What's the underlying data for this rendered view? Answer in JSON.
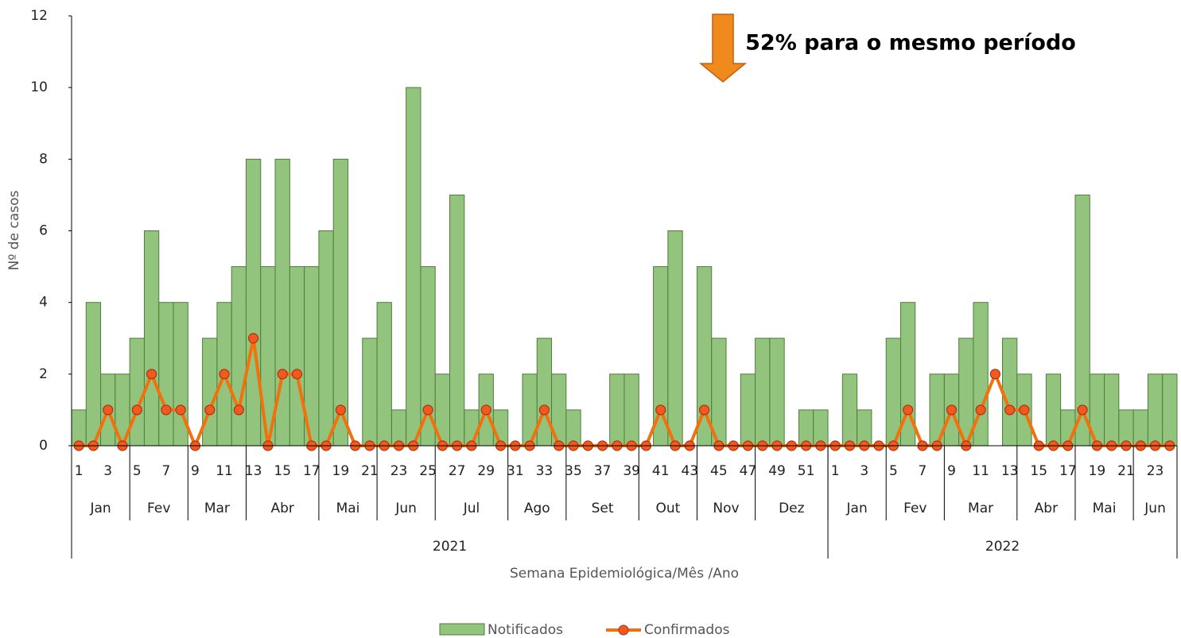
{
  "chart_data": {
    "type": "bar-line",
    "annotation": "52% para o mesmo período",
    "ylabel": "Nº de casos",
    "xlabel": "Semana Epidemiológica/Mês /Ano",
    "categories": [
      1,
      null,
      3,
      null,
      5,
      null,
      7,
      null,
      9,
      null,
      11,
      null,
      13,
      null,
      15,
      null,
      17,
      null,
      19,
      null,
      21,
      null,
      23,
      null,
      25,
      null,
      27,
      null,
      29,
      null,
      31,
      null,
      33,
      null,
      35,
      null,
      37,
      null,
      39,
      null,
      41,
      null,
      43,
      null,
      45,
      null,
      47,
      null,
      49,
      null,
      51,
      null,
      1,
      null,
      3,
      null,
      5,
      null,
      7,
      null,
      9,
      null,
      11,
      null,
      13,
      null,
      15,
      null,
      17,
      null,
      19,
      null,
      21,
      null,
      23,
      null
    ],
    "months": [
      "Jan",
      "Jan",
      "Jan",
      "Jan",
      "Fev",
      "Fev",
      "Fev",
      "Fev",
      "Mar",
      "Mar",
      "Mar",
      "Mar",
      "Abr",
      "Abr",
      "Abr",
      "Abr",
      "Abr",
      "Mai",
      "Mai",
      "Mai",
      "Mai",
      "Jun",
      "Jun",
      "Jun",
      "Jun",
      "Jul",
      "Jul",
      "Jul",
      "Jul",
      "Jul",
      "Ago",
      "Ago",
      "Ago",
      "Ago",
      "Set",
      "Set",
      "Set",
      "Set",
      "Set",
      "Out",
      "Out",
      "Out",
      "Out",
      "Nov",
      "Nov",
      "Nov",
      "Nov",
      "Dez",
      "Dez",
      "Dez",
      "Dez",
      "Dez",
      "Jan",
      "Jan",
      "Jan",
      "Jan",
      "Fev",
      "Fev",
      "Fev",
      "Fev",
      "Mar",
      "Mar",
      "Mar",
      "Mar",
      "Mar",
      "Abr",
      "Abr",
      "Abr",
      "Abr",
      "Mai",
      "Mai",
      "Mai",
      "Mai",
      "Jun",
      "Jun",
      "Jun"
    ],
    "years": [
      "2021",
      "2021",
      "2021",
      "2021",
      "2021",
      "2021",
      "2021",
      "2021",
      "2021",
      "2021",
      "2021",
      "2021",
      "2021",
      "2021",
      "2021",
      "2021",
      "2021",
      "2021",
      "2021",
      "2021",
      "2021",
      "2021",
      "2021",
      "2021",
      "2021",
      "2021",
      "2021",
      "2021",
      "2021",
      "2021",
      "2021",
      "2021",
      "2021",
      "2021",
      "2021",
      "2021",
      "2021",
      "2021",
      "2021",
      "2021",
      "2021",
      "2021",
      "2021",
      "2021",
      "2021",
      "2021",
      "2021",
      "2021",
      "2021",
      "2021",
      "2021",
      "2021",
      "2022",
      "2022",
      "2022",
      "2022",
      "2022",
      "2022",
      "2022",
      "2022",
      "2022",
      "2022",
      "2022",
      "2022",
      "2022",
      "2022",
      "2022",
      "2022",
      "2022",
      "2022",
      "2022",
      "2022",
      "2022",
      "2022",
      "2022",
      "2022"
    ],
    "series": [
      {
        "name": "Notificados",
        "kind": "bar",
        "color": "#93c47d",
        "values": [
          1,
          4,
          2,
          2,
          3,
          6,
          4,
          4,
          0,
          3,
          4,
          5,
          8,
          5,
          8,
          5,
          5,
          6,
          8,
          0,
          3,
          4,
          1,
          10,
          5,
          2,
          7,
          1,
          2,
          1,
          0,
          2,
          3,
          2,
          1,
          0,
          0,
          2,
          2,
          0,
          5,
          6,
          0,
          5,
          3,
          0,
          2,
          3,
          3,
          0,
          1,
          1,
          0,
          2,
          1,
          0,
          3,
          4,
          0,
          2,
          2,
          3,
          4,
          0,
          3,
          2,
          0,
          2,
          1,
          7,
          2,
          2,
          1,
          1,
          2,
          2
        ]
      },
      {
        "name": "Confirmados",
        "kind": "line",
        "color": "#f4700a",
        "values": [
          0,
          0,
          1,
          0,
          1,
          2,
          1,
          1,
          0,
          1,
          2,
          1,
          3,
          0,
          2,
          2,
          0,
          0,
          1,
          0,
          0,
          0,
          0,
          0,
          1,
          0,
          0,
          0,
          1,
          0,
          0,
          0,
          1,
          0,
          0,
          0,
          0,
          0,
          0,
          0,
          1,
          0,
          0,
          1,
          0,
          0,
          0,
          0,
          0,
          0,
          0,
          0,
          0,
          0,
          0,
          0,
          0,
          1,
          0,
          0,
          1,
          0,
          1,
          2,
          1,
          1,
          0,
          0,
          0,
          1,
          0,
          0,
          0,
          0,
          0,
          0
        ]
      }
    ],
    "ylim": [
      0,
      12
    ],
    "yticks": [
      0,
      2,
      4,
      6,
      8,
      10,
      12
    ]
  }
}
